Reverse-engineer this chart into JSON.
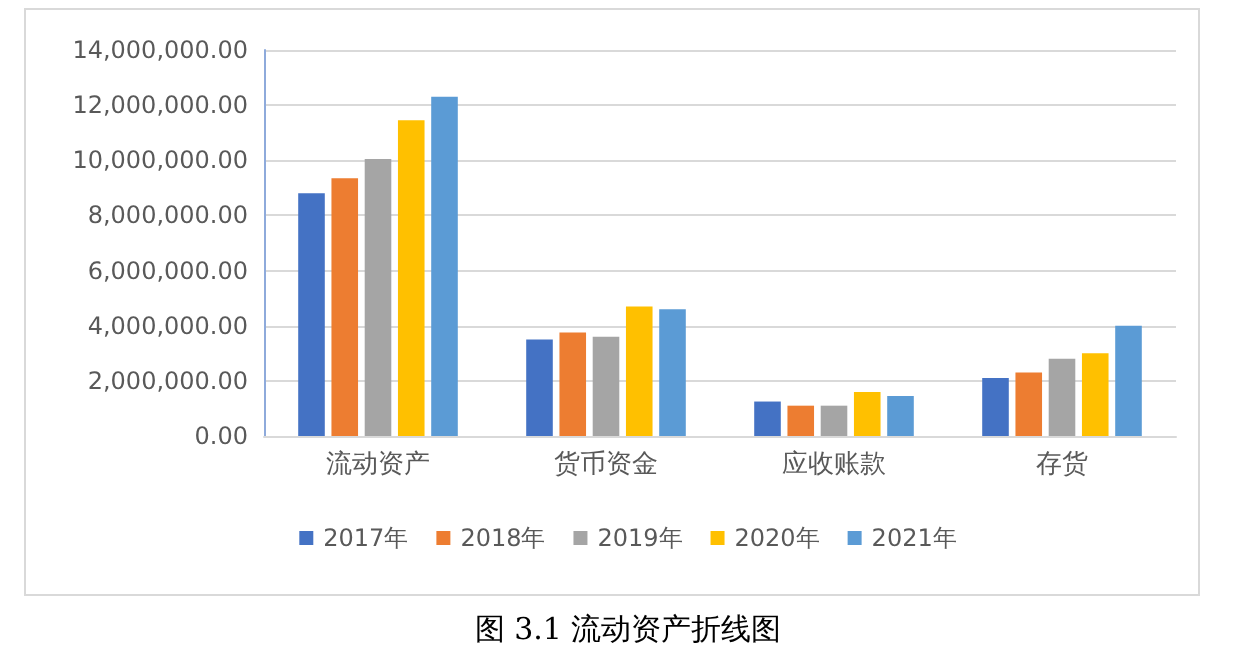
{
  "chart_data": {
    "type": "bar",
    "title": "图 3.1 流动资产折线图",
    "categories": [
      "流动资产",
      "货币资金",
      "应收账款",
      "存货"
    ],
    "series": [
      {
        "name": "2017年",
        "color": "#4472c4",
        "values": [
          8800000,
          3500000,
          1250000,
          2100000
        ]
      },
      {
        "name": "2018年",
        "color": "#ed7d31",
        "values": [
          9350000,
          3750000,
          1100000,
          2300000
        ]
      },
      {
        "name": "2019年",
        "color": "#a5a5a5",
        "values": [
          10050000,
          3600000,
          1100000,
          2800000
        ]
      },
      {
        "name": "2020年",
        "color": "#ffc000",
        "values": [
          11450000,
          4700000,
          1600000,
          3000000
        ]
      },
      {
        "name": "2021年",
        "color": "#5b9bd5",
        "values": [
          12300000,
          4600000,
          1450000,
          4000000
        ]
      }
    ],
    "ylim": [
      0,
      14000000
    ],
    "yticks": [
      {
        "value": 0,
        "label": "0.00"
      },
      {
        "value": 2000000,
        "label": "2,000,000.00"
      },
      {
        "value": 4000000,
        "label": "4,000,000.00"
      },
      {
        "value": 6000000,
        "label": "6,000,000.00"
      },
      {
        "value": 8000000,
        "label": "8,000,000.00"
      },
      {
        "value": 10000000,
        "label": "10,000,000.00"
      },
      {
        "value": 12000000,
        "label": "12,000,000.00"
      },
      {
        "value": 14000000,
        "label": "14,000,000.00"
      }
    ],
    "grid": "y",
    "legend": "bottom"
  }
}
